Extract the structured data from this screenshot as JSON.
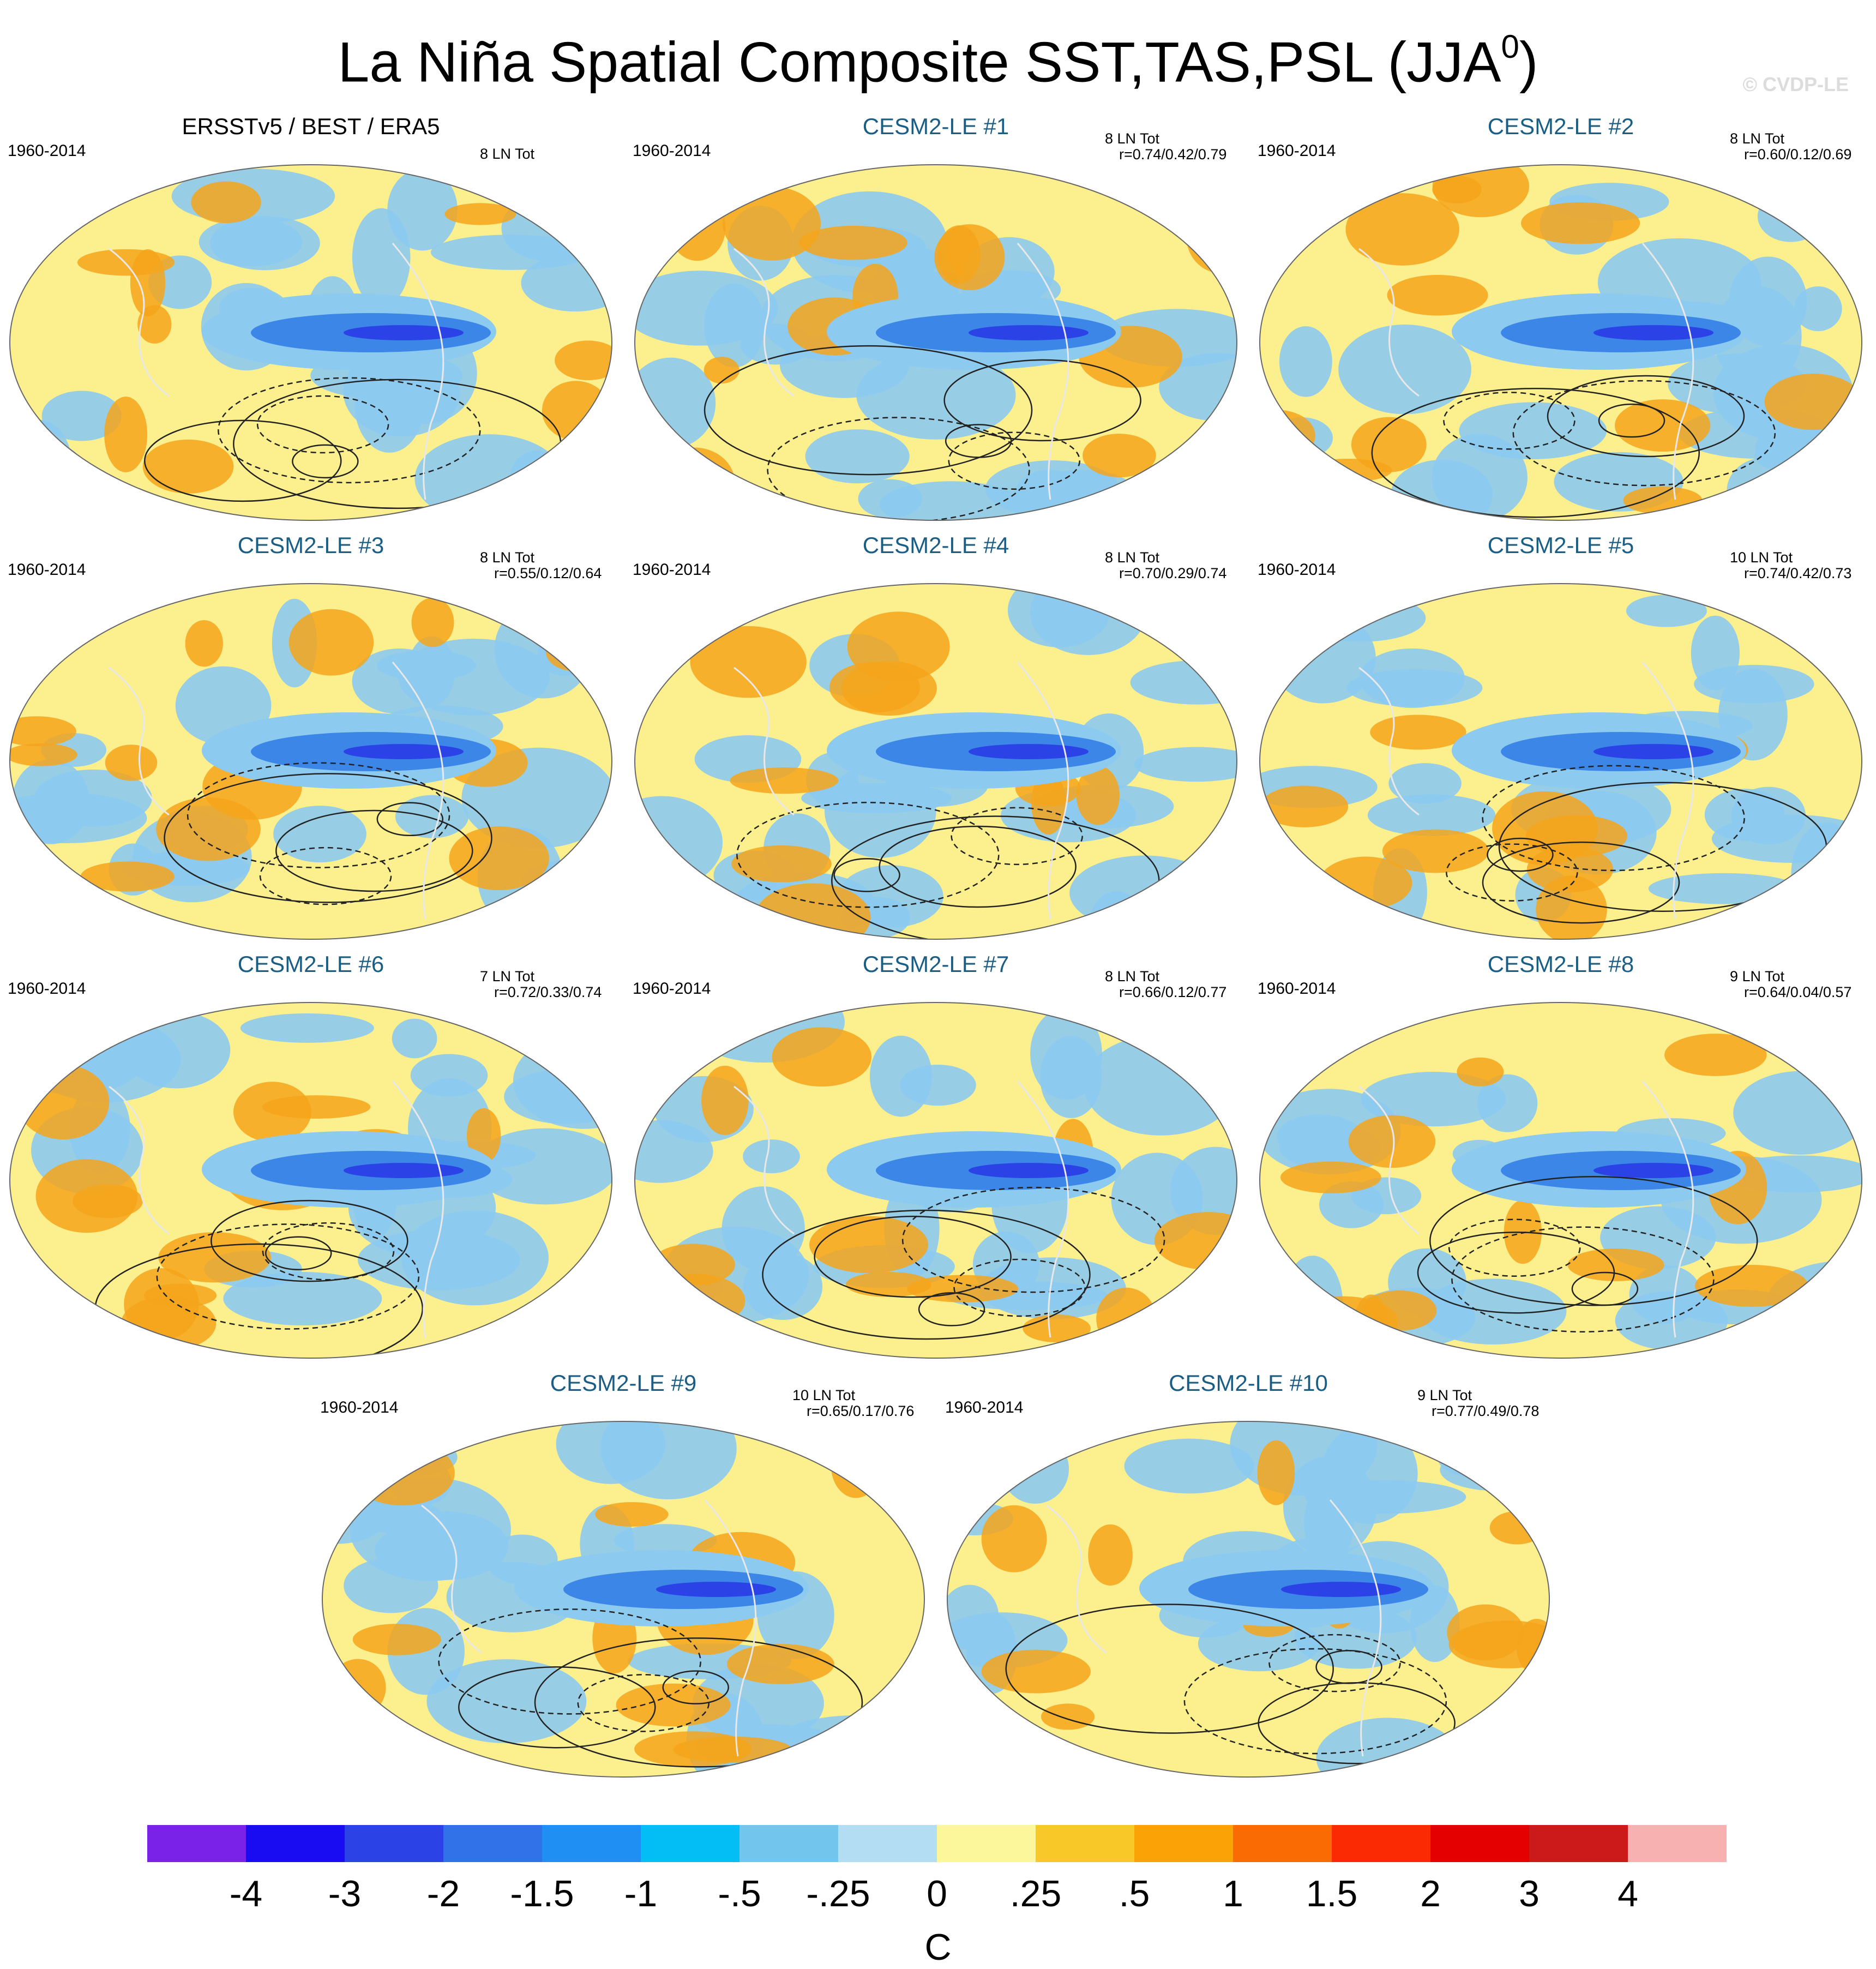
{
  "figure": {
    "title": "La Niña Spatial Composite SST,TAS,PSL (JJA",
    "title_sup": "0",
    "title_close": ")",
    "watermark": "© CVDP-LE"
  },
  "panels": [
    {
      "title": "ERSSTv5 / BEST / ERA5",
      "period": "1960-2014",
      "count": "8 LN Tot",
      "r": "",
      "observed": true
    },
    {
      "title": "CESM2-LE #1",
      "period": "1960-2014",
      "count": "8 LN Tot",
      "r": "r=0.74/0.42/0.79"
    },
    {
      "title": "CESM2-LE #2",
      "period": "1960-2014",
      "count": "8 LN Tot",
      "r": "r=0.60/0.12/0.69"
    },
    {
      "title": "CESM2-LE #3",
      "period": "1960-2014",
      "count": "8 LN Tot",
      "r": "r=0.55/0.12/0.64"
    },
    {
      "title": "CESM2-LE #4",
      "period": "1960-2014",
      "count": "8 LN Tot",
      "r": "r=0.70/0.29/0.74"
    },
    {
      "title": "CESM2-LE #5",
      "period": "1960-2014",
      "count": "10 LN Tot",
      "r": "r=0.74/0.42/0.73"
    },
    {
      "title": "CESM2-LE #6",
      "period": "1960-2014",
      "count": "7 LN Tot",
      "r": "r=0.72/0.33/0.74"
    },
    {
      "title": "CESM2-LE #7",
      "period": "1960-2014",
      "count": "8 LN Tot",
      "r": "r=0.66/0.12/0.77"
    },
    {
      "title": "CESM2-LE #8",
      "period": "1960-2014",
      "count": "9 LN Tot",
      "r": "r=0.64/0.04/0.57"
    },
    {
      "title": "CESM2-LE #9",
      "period": "1960-2014",
      "count": "10 LN Tot",
      "r": "r=0.65/0.17/0.76"
    },
    {
      "title": "CESM2-LE #10",
      "period": "1960-2014",
      "count": "9 LN Tot",
      "r": "r=0.77/0.49/0.78"
    }
  ],
  "colorbar": {
    "units": "C",
    "labels": [
      "-4",
      "-3",
      "-2",
      "-1.5",
      "-1",
      "-.5",
      "-.25",
      "0",
      ".25",
      ".5",
      "1",
      "1.5",
      "2",
      "3",
      "4"
    ],
    "colors": [
      "#7b22e8",
      "#1a0cf2",
      "#2b42e6",
      "#3272e8",
      "#1f8ff4",
      "#03bef5",
      "#72c6ee",
      "#b3ddf2",
      "#fdf79b",
      "#f8c829",
      "#fba206",
      "#fb6b04",
      "#fb2a03",
      "#e50000",
      "#cc1a1a",
      "#f7b1b1"
    ]
  },
  "palette": {
    "cold_anomaly": "#3c86e8",
    "cool_anomaly": "#8ccaf0",
    "neutral_warm": "#fcef8d",
    "warm_anomaly": "#f5a41b",
    "title_model": "#1a5e86",
    "coastline": "#e8e8e8",
    "psl_contour": "#222222"
  }
}
